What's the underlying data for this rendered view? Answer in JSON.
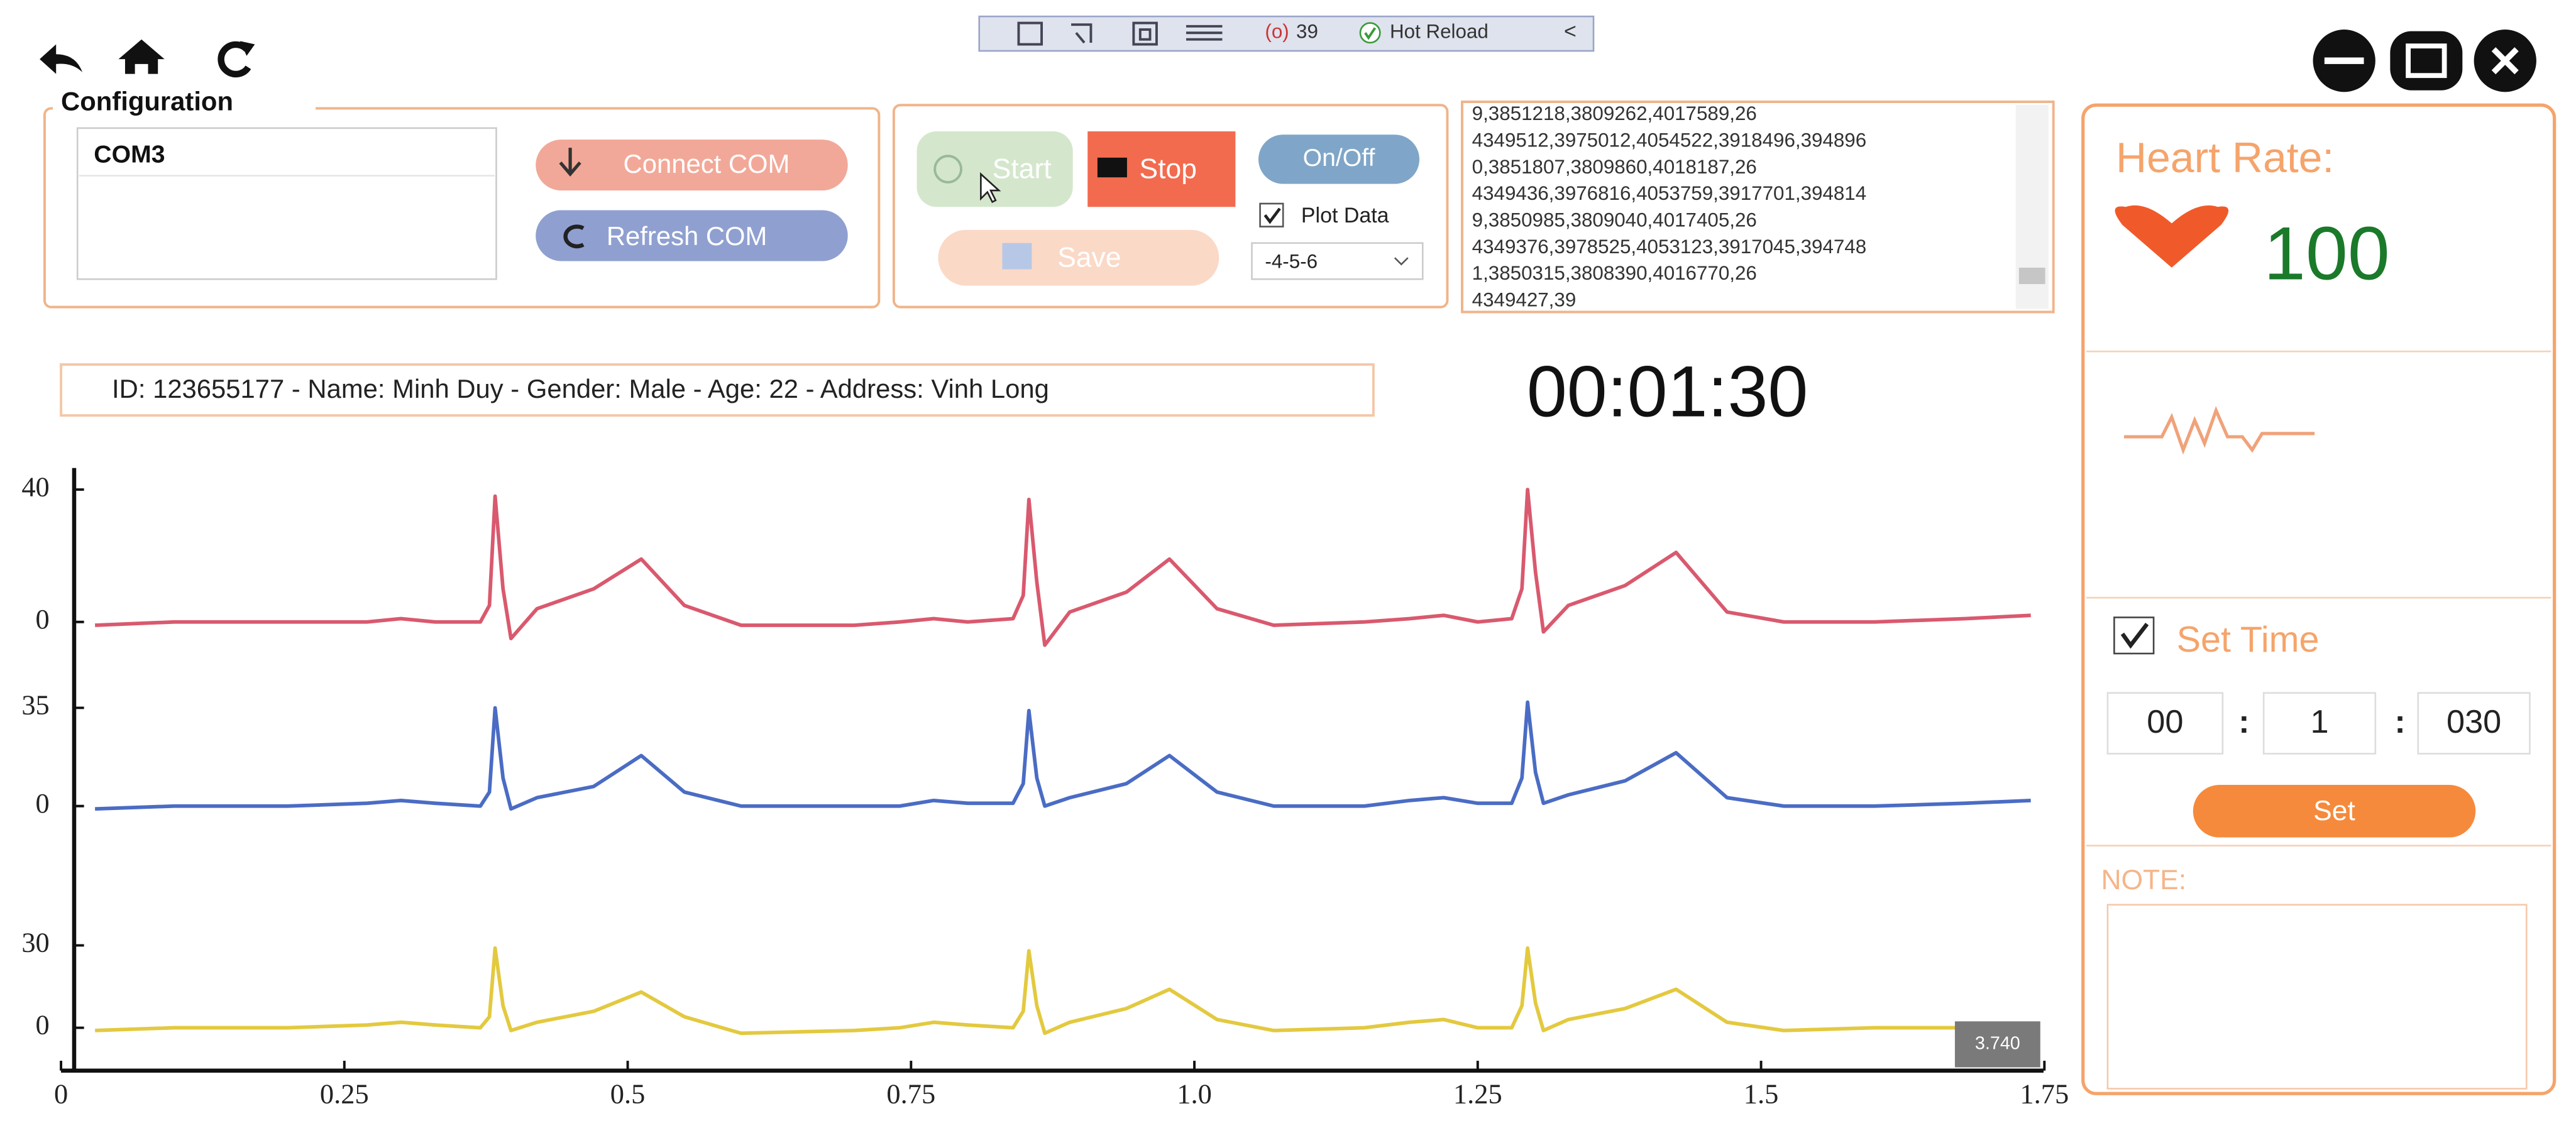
{
  "toolbar": {
    "count": "39",
    "hot_reload": "Hot Reload"
  },
  "configuration": {
    "title": "Configuration",
    "port_list": [
      "COM3"
    ],
    "connect": "Connect COM",
    "refresh": "Refresh COM"
  },
  "controls": {
    "start": "Start",
    "stop": "Stop",
    "on_off": "On/Off",
    "plot_data": "Plot Data",
    "save": "Save",
    "mode": "-4-5-6"
  },
  "log": [
    "9,3851218,3809262,4017589,26",
    "4349512,3975012,4054522,3918496,394896",
    "0,3851807,3809860,4018187,26",
    "4349436,3976816,4053759,3917701,394814",
    "9,3850985,3809040,4017405,26",
    "4349376,3978525,4053123,3917045,394748",
    "1,3850315,3808390,4016770,26",
    "4349427,39"
  ],
  "patient_info": "ID: 123655177 - Name: Minh Duy - Gender: Male - Age: 22 - Address: Vinh Long",
  "timer": "00:01:30",
  "heart_rate": {
    "label": "Heart Rate:",
    "value": 100
  },
  "set_time": {
    "label": "Set Time",
    "hours": "00",
    "minutes": "1",
    "seconds": "030",
    "separator": ":",
    "button": "Set"
  },
  "note": {
    "label": "NOTE:"
  },
  "chart_data": [
    {
      "type": "line",
      "xlim": [
        0,
        1.75
      ],
      "ylim": [
        -15,
        50
      ],
      "yticks": [
        0,
        40
      ],
      "x": [
        0.03,
        0.1,
        0.2,
        0.27,
        0.3,
        0.33,
        0.37,
        0.378,
        0.383,
        0.39,
        0.397,
        0.42,
        0.47,
        0.512,
        0.55,
        0.6,
        0.7,
        0.74,
        0.77,
        0.8,
        0.84,
        0.849,
        0.854,
        0.861,
        0.868,
        0.89,
        0.94,
        0.978,
        1.02,
        1.07,
        1.15,
        1.19,
        1.22,
        1.25,
        1.28,
        1.289,
        1.294,
        1.301,
        1.308,
        1.33,
        1.38,
        1.425,
        1.47,
        1.52,
        1.6,
        1.68,
        1.738
      ],
      "series": [
        {
          "color": "#d9596e",
          "values": [
            -1,
            0,
            0,
            0,
            1,
            0,
            0,
            5,
            38,
            10,
            -5,
            4,
            10,
            19,
            5,
            -1,
            -1,
            0,
            1,
            0,
            1,
            8,
            37,
            12,
            -7,
            3,
            9,
            19,
            4,
            -1,
            0,
            1,
            2,
            0,
            1,
            10,
            40,
            15,
            -3,
            5,
            11,
            21,
            3,
            0,
            0,
            1,
            2
          ]
        }
      ]
    },
    {
      "type": "line",
      "xlim": [
        0,
        1.75
      ],
      "ylim": [
        -10,
        45
      ],
      "yticks": [
        0,
        35
      ],
      "x": [
        0.03,
        0.1,
        0.2,
        0.27,
        0.3,
        0.33,
        0.37,
        0.378,
        0.383,
        0.39,
        0.397,
        0.42,
        0.47,
        0.512,
        0.55,
        0.6,
        0.7,
        0.74,
        0.77,
        0.8,
        0.84,
        0.849,
        0.854,
        0.861,
        0.868,
        0.89,
        0.94,
        0.978,
        1.02,
        1.07,
        1.15,
        1.19,
        1.22,
        1.25,
        1.28,
        1.289,
        1.294,
        1.301,
        1.308,
        1.33,
        1.38,
        1.425,
        1.47,
        1.52,
        1.6,
        1.68,
        1.738
      ],
      "series": [
        {
          "color": "#4a6cc4",
          "values": [
            -1,
            0,
            0,
            1,
            2,
            1,
            0,
            5,
            35,
            10,
            -1,
            3,
            7,
            18,
            5,
            0,
            0,
            0,
            2,
            1,
            1,
            8,
            34,
            10,
            0,
            3,
            8,
            18,
            5,
            0,
            0,
            2,
            3,
            1,
            1,
            10,
            37,
            12,
            1,
            4,
            9,
            19,
            3,
            0,
            0,
            1,
            2
          ]
        }
      ]
    },
    {
      "type": "line",
      "xlim": [
        0,
        1.75
      ],
      "ylim": [
        -15,
        40
      ],
      "yticks": [
        0,
        30
      ],
      "xticks": [
        0,
        0.25,
        0.5,
        0.75,
        {
          "value": 1,
          "label": "1.0"
        },
        1.25,
        1.5,
        1.75
      ],
      "annotation": "3.740",
      "x": [
        0.03,
        0.1,
        0.2,
        0.27,
        0.3,
        0.33,
        0.37,
        0.378,
        0.383,
        0.39,
        0.397,
        0.42,
        0.47,
        0.512,
        0.55,
        0.6,
        0.7,
        0.74,
        0.77,
        0.8,
        0.84,
        0.849,
        0.854,
        0.861,
        0.868,
        0.89,
        0.94,
        0.978,
        1.02,
        1.07,
        1.15,
        1.19,
        1.22,
        1.25,
        1.28,
        1.289,
        1.294,
        1.301,
        1.308,
        1.33,
        1.38,
        1.425,
        1.47,
        1.52,
        1.6,
        1.68,
        1.738
      ],
      "series": [
        {
          "color": "#e3c93f",
          "values": [
            -1,
            0,
            0,
            1,
            2,
            1,
            0,
            4,
            29,
            8,
            -1,
            2,
            6,
            13,
            4,
            -2,
            -1,
            0,
            2,
            1,
            0,
            6,
            28,
            8,
            -2,
            2,
            7,
            14,
            3,
            -1,
            0,
            2,
            3,
            0,
            0,
            8,
            29,
            9,
            -1,
            3,
            7,
            14,
            2,
            -1,
            0,
            0,
            0
          ]
        }
      ]
    }
  ]
}
